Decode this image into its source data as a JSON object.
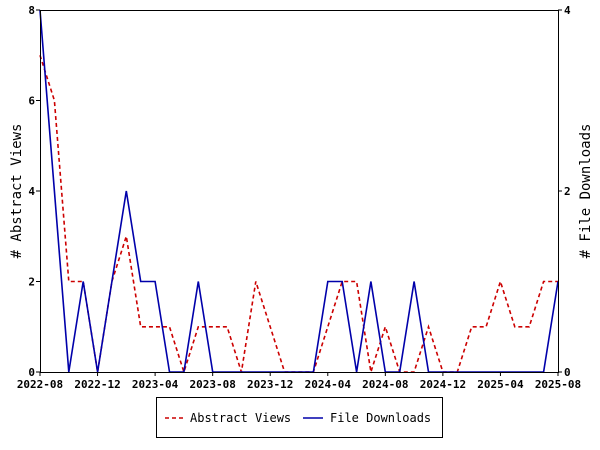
{
  "chart_data": {
    "type": "line",
    "x_tick_labels": [
      "2022-08",
      "2022-12",
      "2023-04",
      "2023-08",
      "2023-12",
      "2024-04",
      "2024-08",
      "2024-12",
      "2025-04",
      "2025-08"
    ],
    "x": [
      "2022-08",
      "2022-09",
      "2022-10",
      "2022-11",
      "2022-12",
      "2023-01",
      "2023-02",
      "2023-03",
      "2023-04",
      "2023-05",
      "2023-06",
      "2023-07",
      "2023-08",
      "2023-09",
      "2023-10",
      "2023-11",
      "2023-12",
      "2024-01",
      "2024-02",
      "2024-03",
      "2024-04",
      "2024-05",
      "2024-06",
      "2024-07",
      "2024-08",
      "2024-09",
      "2024-10",
      "2024-11",
      "2024-12",
      "2025-01",
      "2025-02",
      "2025-03",
      "2025-04",
      "2025-05",
      "2025-06",
      "2025-07",
      "2025-08"
    ],
    "y_left": {
      "label": "# Abstract Views",
      "ylim": [
        0,
        8
      ],
      "ticks": [
        "0",
        "2",
        "4",
        "6",
        "8"
      ]
    },
    "y_right": {
      "label": "# File Downloads",
      "ylim": [
        0,
        4
      ],
      "ticks": [
        "0",
        "2",
        "4"
      ]
    },
    "series": [
      {
        "name": "Abstract Views",
        "axis": "left",
        "color": "#cc0000",
        "dash": "dashed",
        "values": [
          7,
          6,
          2,
          2,
          0,
          2,
          3,
          1,
          1,
          1,
          0,
          1,
          1,
          1,
          0,
          2,
          1,
          0,
          0,
          0,
          1,
          2,
          2,
          0,
          1,
          0,
          0,
          1,
          0,
          0,
          1,
          1,
          2,
          1,
          1,
          2,
          2
        ]
      },
      {
        "name": "File Downloads",
        "axis": "right",
        "color": "#0000aa",
        "dash": "solid",
        "values": [
          4,
          2,
          0,
          1,
          0,
          1,
          2,
          1,
          1,
          0,
          0,
          1,
          0,
          0,
          0,
          0,
          0,
          0,
          0,
          0,
          1,
          1,
          0,
          1,
          0,
          0,
          1,
          0,
          0,
          0,
          0,
          0,
          0,
          0,
          0,
          0,
          1
        ]
      }
    ],
    "grid": false,
    "legend_position": "bottom-center"
  }
}
